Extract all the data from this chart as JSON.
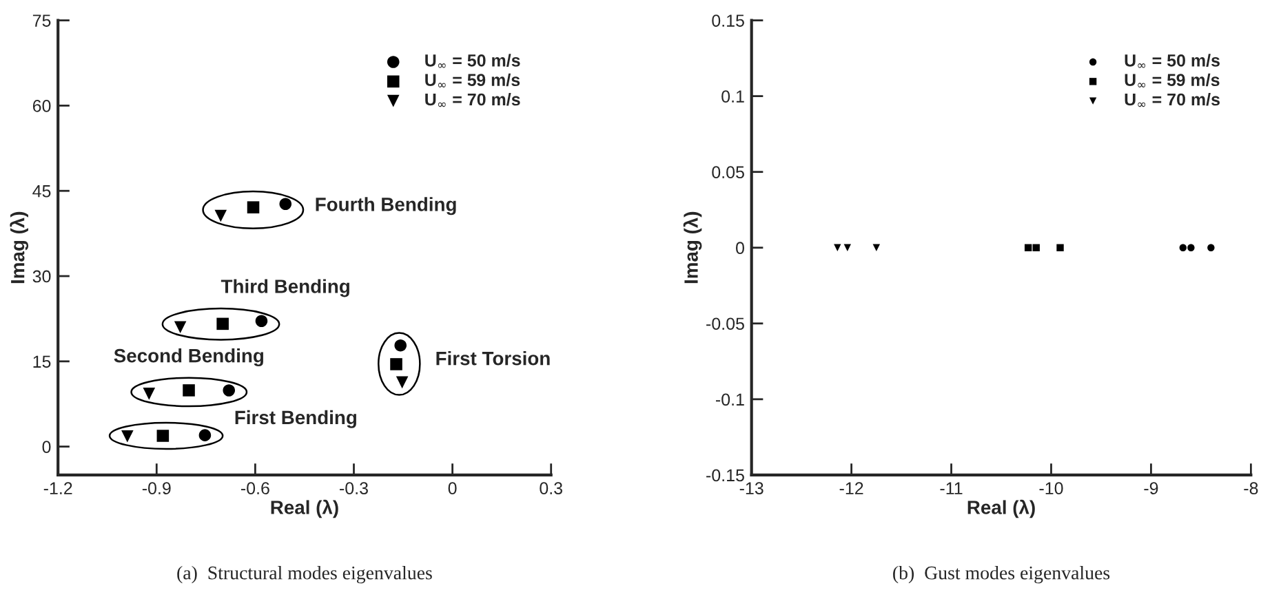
{
  "chart_data": [
    {
      "type": "scatter",
      "xlabel": "Real (λ)",
      "ylabel": "Imag (λ)",
      "xlim": [
        -1.2,
        0.3
      ],
      "xticks": [
        -1.2,
        -0.9,
        -0.6,
        -0.3,
        0,
        0.3
      ],
      "ylim": [
        -5,
        75
      ],
      "yticks": [
        0,
        15,
        30,
        45,
        60,
        75
      ],
      "grid": false,
      "legend": "top right",
      "series": [
        {
          "name": "U$_{∞}$ = 50 m/s",
          "color": "#000000",
          "marker": "circle",
          "x": [
            -0.753,
            -0.68,
            -0.581,
            -0.508,
            -0.158
          ],
          "values": [
            2.0,
            9.9,
            22.1,
            42.7,
            17.8
          ]
        },
        {
          "name": "U$_{∞}$ = 59 m/s",
          "color": "#000000",
          "marker": "square",
          "x": [
            -0.881,
            -0.802,
            -0.699,
            -0.606,
            -0.171
          ],
          "values": [
            1.9,
            9.9,
            21.6,
            42.1,
            14.5
          ]
        },
        {
          "name": "U$_{∞}$ = 70 m/s",
          "color": "#000000",
          "marker": "triangle",
          "x": [
            -0.989,
            -0.923,
            -0.828,
            -0.705,
            -0.153
          ],
          "values": [
            1.8,
            9.3,
            21.0,
            40.6,
            11.3
          ]
        }
      ],
      "annotations": [
        "First Bending",
        "Second Bending",
        "Third Bending",
        "Fourth Bending",
        "First Torsion",
        "(a)  Structural modes eigenvalues"
      ]
    },
    {
      "type": "scatter",
      "xlabel": "Real (λ)",
      "ylabel": "Imag (λ)",
      "xlim": [
        -13,
        -8
      ],
      "xticks": [
        -13,
        -12,
        -11,
        -10,
        -9,
        -8
      ],
      "ylim": [
        -0.15,
        0.15
      ],
      "yticks": [
        -0.15,
        -0.1,
        -0.05,
        0,
        0.05,
        0.1,
        0.15
      ],
      "grid": false,
      "legend": "top right",
      "series": [
        {
          "name": "U$_{∞}$ = 50 m/s",
          "color": "#000000",
          "marker": "circle",
          "x": [
            -8.68,
            -8.6,
            -8.4
          ],
          "values": [
            0,
            0,
            0
          ]
        },
        {
          "name": "U$_{∞}$ = 59 m/s",
          "color": "#000000",
          "marker": "square",
          "x": [
            -10.23,
            -10.15,
            -9.91
          ],
          "values": [
            0,
            0,
            0
          ]
        },
        {
          "name": "U$_{∞}$ = 70 m/s",
          "color": "#000000",
          "marker": "triangle",
          "x": [
            -12.14,
            -12.04,
            -11.75
          ],
          "values": [
            0,
            0,
            0
          ]
        }
      ],
      "annotations": [
        "(b)  Gust modes eigenvalues"
      ]
    }
  ]
}
